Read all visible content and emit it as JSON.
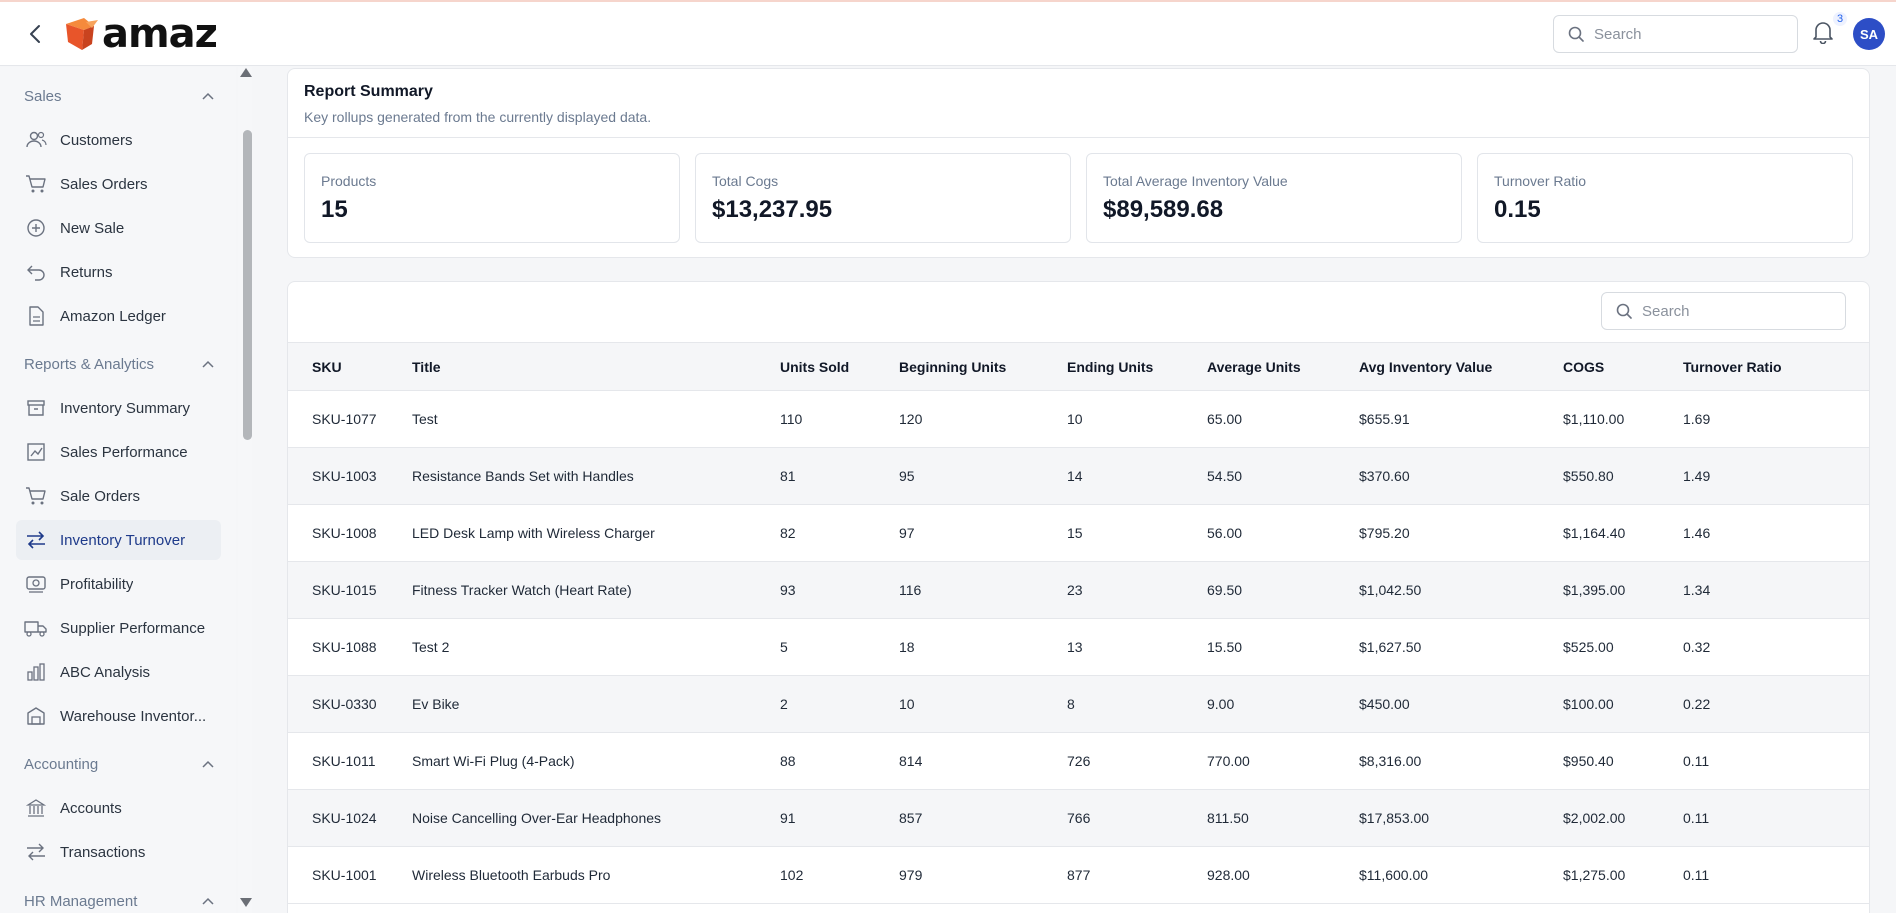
{
  "header": {
    "logo_text": "amaz",
    "search_placeholder": "Search",
    "notification_count": "3",
    "avatar_initials": "SA"
  },
  "sidebar": {
    "sections": [
      {
        "label": "Sales",
        "items": [
          "Customers",
          "Sales Orders",
          "New Sale",
          "Returns",
          "Amazon Ledger"
        ]
      },
      {
        "label": "Reports & Analytics",
        "items": [
          "Inventory Summary",
          "Sales Performance",
          "Sale Orders",
          "Inventory Turnover",
          "Profitability",
          "Supplier Performance",
          "ABC Analysis",
          "Warehouse Inventor..."
        ]
      },
      {
        "label": "Accounting",
        "items": [
          "Accounts",
          "Transactions"
        ]
      },
      {
        "label": "HR Management",
        "items": []
      }
    ],
    "active_item": "Inventory Turnover"
  },
  "summary": {
    "title": "Report Summary",
    "subtitle": "Key rollups generated from the currently displayed data.",
    "kpis": [
      {
        "label": "Products",
        "value": "15"
      },
      {
        "label": "Total Cogs",
        "value": "$13,237.95"
      },
      {
        "label": "Total Average Inventory Value",
        "value": "$89,589.68"
      },
      {
        "label": "Turnover Ratio",
        "value": "0.15"
      }
    ]
  },
  "table": {
    "search_placeholder": "Search",
    "columns": [
      "SKU",
      "Title",
      "Units Sold",
      "Beginning Units",
      "Ending Units",
      "Average Units",
      "Avg Inventory Value",
      "COGS",
      "Turnover Ratio"
    ],
    "rows": [
      [
        "SKU-1077",
        "Test",
        "110",
        "120",
        "10",
        "65.00",
        "$655.91",
        "$1,110.00",
        "1.69"
      ],
      [
        "SKU-1003",
        "Resistance Bands Set with Handles",
        "81",
        "95",
        "14",
        "54.50",
        "$370.60",
        "$550.80",
        "1.49"
      ],
      [
        "SKU-1008",
        "LED Desk Lamp with Wireless Charger",
        "82",
        "97",
        "15",
        "56.00",
        "$795.20",
        "$1,164.40",
        "1.46"
      ],
      [
        "SKU-1015",
        "Fitness Tracker Watch (Heart Rate)",
        "93",
        "116",
        "23",
        "69.50",
        "$1,042.50",
        "$1,395.00",
        "1.34"
      ],
      [
        "SKU-1088",
        "Test 2",
        "5",
        "18",
        "13",
        "15.50",
        "$1,627.50",
        "$525.00",
        "0.32"
      ],
      [
        "SKU-0330",
        "Ev Bike",
        "2",
        "10",
        "8",
        "9.00",
        "$450.00",
        "$100.00",
        "0.22"
      ],
      [
        "SKU-1011",
        "Smart Wi-Fi Plug (4-Pack)",
        "88",
        "814",
        "726",
        "770.00",
        "$8,316.00",
        "$950.40",
        "0.11"
      ],
      [
        "SKU-1024",
        "Noise Cancelling Over-Ear Headphones",
        "91",
        "857",
        "766",
        "811.50",
        "$17,853.00",
        "$2,002.00",
        "0.11"
      ],
      [
        "SKU-1001",
        "Wireless Bluetooth Earbuds Pro",
        "102",
        "979",
        "877",
        "928.00",
        "$11,600.00",
        "$1,275.00",
        "0.11"
      ]
    ]
  },
  "colors": {
    "accent": "#1e3a8a",
    "avatar_bg": "#2d4ec6",
    "logo_orange": "#f0652a"
  },
  "icons": {
    "back": "chevron-left-icon",
    "search": "search-icon",
    "bell": "bell-icon"
  }
}
